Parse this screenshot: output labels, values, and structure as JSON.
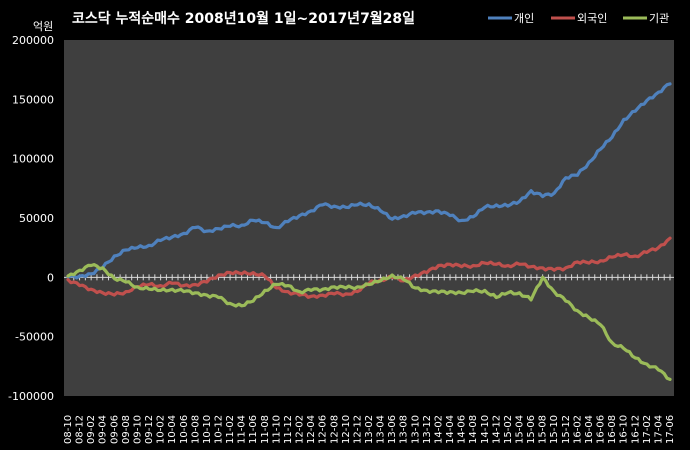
{
  "chart_data": {
    "type": "line",
    "title": "코스닥  누적순매수 2008년10월 1일~2017년7월28일",
    "ylabel": "억원",
    "ylim": [
      -100000,
      200000
    ],
    "yticks": [
      200000,
      150000,
      100000,
      50000,
      0,
      -50000,
      -100000
    ],
    "grid": false,
    "legend_position": "top-right",
    "categories": [
      "08-10",
      "08-12",
      "09-02",
      "09-04",
      "09-06",
      "09-08",
      "09-10",
      "09-12",
      "10-02",
      "10-04",
      "10-06",
      "10-08",
      "10-10",
      "10-12",
      "11-02",
      "11-04",
      "11-06",
      "11-08",
      "11-10",
      "11-12",
      "12-02",
      "12-04",
      "12-06",
      "12-08",
      "12-10",
      "12-12",
      "13-02",
      "13-04",
      "13-06",
      "13-08",
      "13-10",
      "13-12",
      "14-02",
      "14-04",
      "14-06",
      "14-08",
      "14-10",
      "14-12",
      "15-02",
      "15-04",
      "15-06",
      "15-08",
      "15-10",
      "15-12",
      "16-02",
      "16-04",
      "16-06",
      "16-08",
      "16-10",
      "16-12",
      "17-02",
      "17-04",
      "17-06"
    ],
    "series": [
      {
        "name": "개인",
        "color": "#4f81bd",
        "values": [
          0,
          1000,
          3000,
          8000,
          18000,
          23000,
          25000,
          27000,
          31000,
          34000,
          37000,
          42000,
          39000,
          41000,
          43000,
          44000,
          48000,
          46000,
          42000,
          47000,
          52000,
          56000,
          61000,
          60000,
          59000,
          61000,
          62000,
          56000,
          49000,
          52000,
          54000,
          55000,
          56000,
          52000,
          48000,
          51000,
          59000,
          61000,
          60000,
          64000,
          73000,
          68000,
          71000,
          84000,
          86000,
          97000,
          108000,
          118000,
          133000,
          140000,
          149000,
          156000,
          163000
        ]
      },
      {
        "name": "외국인",
        "color": "#c0504d",
        "values": [
          -2000,
          -7000,
          -10000,
          -13000,
          -15000,
          -12000,
          -8000,
          -6000,
          -7000,
          -5000,
          -7000,
          -6000,
          -4000,
          2000,
          4000,
          3000,
          4000,
          1000,
          -9000,
          -12000,
          -15000,
          -16000,
          -15000,
          -14000,
          -14000,
          -12000,
          -5000,
          -2000,
          0,
          -3000,
          2000,
          4000,
          10000,
          11000,
          9000,
          10000,
          12000,
          11000,
          10000,
          11000,
          9000,
          8000,
          6000,
          8000,
          13000,
          12000,
          14000,
          17000,
          19000,
          18000,
          21000,
          25000,
          33000
        ]
      },
      {
        "name": "기관",
        "color": "#9bbb59",
        "values": [
          1000,
          6000,
          10000,
          8000,
          -1000,
          -4000,
          -8000,
          -10000,
          -11000,
          -10000,
          -12000,
          -13000,
          -15000,
          -17000,
          -22000,
          -24000,
          -20000,
          -11000,
          -6000,
          -7000,
          -12000,
          -11000,
          -10000,
          -8000,
          -9000,
          -8000,
          -6000,
          -3000,
          2000,
          -2000,
          -9000,
          -11000,
          -13000,
          -12000,
          -13000,
          -12000,
          -11000,
          -17000,
          -13000,
          -13000,
          -19000,
          0,
          -12000,
          -20000,
          -28000,
          -34000,
          -40000,
          -55000,
          -60000,
          -68000,
          -73000,
          -78000,
          -86000
        ]
      }
    ]
  }
}
